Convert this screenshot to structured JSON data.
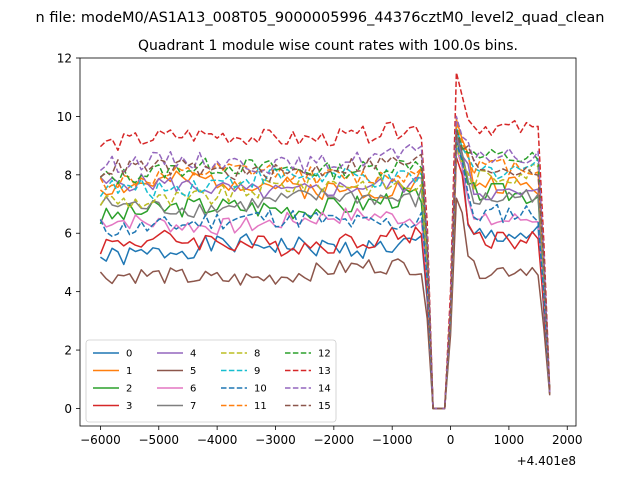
{
  "suptitle": "n file: modeM0/AS1A13_008T05_9000005996_44376cztM0_level2_quad_clean",
  "chart_data": {
    "type": "line",
    "title": "Quadrant 1 module wise count rates with 100.0s bins.",
    "xlabel": "",
    "ylabel": "",
    "x_offset_label": "+4.401e8",
    "xlim": [
      -6350,
      2150
    ],
    "ylim": [
      -0.6,
      12
    ],
    "xticks": [
      -6000,
      -5000,
      -4000,
      -3000,
      -2000,
      -1000,
      0,
      1000,
      2000
    ],
    "xtick_labels": [
      "−6000",
      "−5000",
      "−4000",
      "−3000",
      "−2000",
      "−1000",
      "0",
      "1000",
      "2000"
    ],
    "yticks": [
      0,
      2,
      4,
      6,
      8,
      10,
      12
    ],
    "ytick_labels": [
      "0",
      "2",
      "4",
      "6",
      "8",
      "10",
      "12"
    ],
    "grid": false,
    "legend_position": "lower-left",
    "legend_columns": 4,
    "series": [
      {
        "name": "0",
        "color": "#1f77b4",
        "dash": "solid",
        "base": 5.3,
        "amp": 0.35,
        "drift": 0.4,
        "peak": 8.9,
        "end": 0.55,
        "seed": 1
      },
      {
        "name": "1",
        "color": "#ff7f0e",
        "dash": "solid",
        "base": 7.7,
        "amp": 0.35,
        "drift": -0.1,
        "peak": 9.9,
        "end": 0.5,
        "seed": 2
      },
      {
        "name": "2",
        "color": "#2ca02c",
        "dash": "solid",
        "base": 6.6,
        "amp": 0.35,
        "drift": 0.6,
        "peak": 9.2,
        "end": 0.6,
        "seed": 3
      },
      {
        "name": "3",
        "color": "#d62728",
        "dash": "solid",
        "base": 5.6,
        "amp": 0.35,
        "drift": 0.2,
        "peak": 8.6,
        "end": 0.5,
        "seed": 4
      },
      {
        "name": "4",
        "color": "#9467bd",
        "dash": "solid",
        "base": 7.6,
        "amp": 0.3,
        "drift": -0.1,
        "peak": 9.3,
        "end": 0.55,
        "seed": 5
      },
      {
        "name": "5",
        "color": "#8c564b",
        "dash": "solid",
        "base": 4.4,
        "amp": 0.3,
        "drift": 0.4,
        "peak": 7.2,
        "end": 0.45,
        "seed": 6
      },
      {
        "name": "6",
        "color": "#e377c2",
        "dash": "solid",
        "base": 6.3,
        "amp": 0.3,
        "drift": 0.2,
        "peak": 8.9,
        "end": 0.5,
        "seed": 7
      },
      {
        "name": "7",
        "color": "#7f7f7f",
        "dash": "solid",
        "base": 6.9,
        "amp": 0.3,
        "drift": 0.3,
        "peak": 9.4,
        "end": 0.5,
        "seed": 8
      },
      {
        "name": "8",
        "color": "#bcbd22",
        "dash": "dashed",
        "base": 7.1,
        "amp": 0.35,
        "drift": 0.7,
        "peak": 9.0,
        "end": 0.55,
        "seed": 9
      },
      {
        "name": "9",
        "color": "#17becf",
        "dash": "dashed",
        "base": 7.6,
        "amp": 0.35,
        "drift": 0.4,
        "peak": 9.6,
        "end": 0.5,
        "seed": 10
      },
      {
        "name": "10",
        "color": "#1f77b4",
        "dash": "dashed",
        "base": 6.3,
        "amp": 0.35,
        "drift": 0.2,
        "peak": 9.1,
        "end": 0.5,
        "seed": 11
      },
      {
        "name": "11",
        "color": "#ff7f0e",
        "dash": "dashed",
        "base": 7.9,
        "amp": 0.3,
        "drift": 0.2,
        "peak": 9.8,
        "end": 0.5,
        "seed": 12
      },
      {
        "name": "12",
        "color": "#2ca02c",
        "dash": "dashed",
        "base": 8.0,
        "amp": 0.3,
        "drift": 0.4,
        "peak": 9.6,
        "end": 0.55,
        "seed": 13
      },
      {
        "name": "13",
        "color": "#d62728",
        "dash": "dashed",
        "base": 9.1,
        "amp": 0.3,
        "drift": 0.4,
        "peak": 11.5,
        "end": 0.6,
        "seed": 14
      },
      {
        "name": "14",
        "color": "#9467bd",
        "dash": "dashed",
        "base": 8.3,
        "amp": 0.3,
        "drift": 0.3,
        "peak": 10.0,
        "end": 0.55,
        "seed": 15
      },
      {
        "name": "15",
        "color": "#8c564b",
        "dash": "dashed",
        "base": 8.1,
        "amp": 0.3,
        "drift": 0.2,
        "peak": 9.5,
        "end": 0.5,
        "seed": 16
      }
    ]
  }
}
